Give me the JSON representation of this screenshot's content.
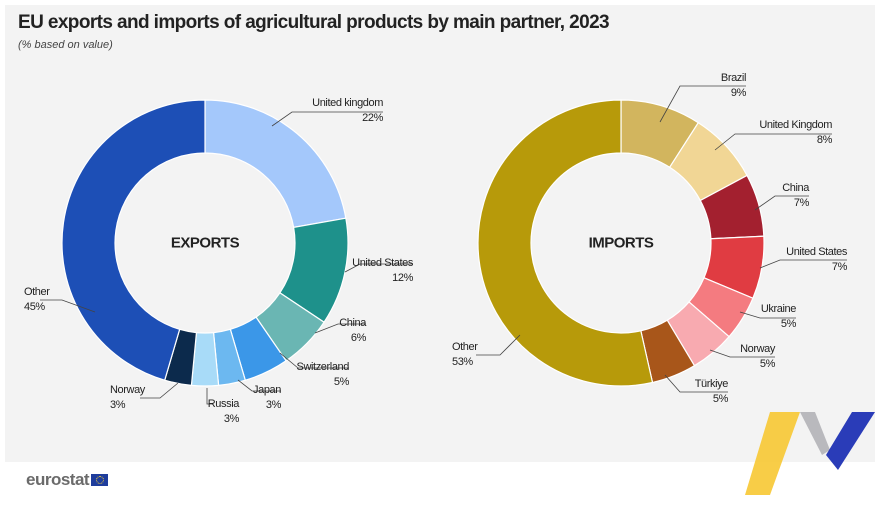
{
  "title": "EU exports and imports of agricultural products by main partner, 2023",
  "subtitle": "(% based on value)",
  "logo_text": "eurostat",
  "chart_data": [
    {
      "type": "pie",
      "variant": "donut",
      "center_label": "EXPORTS",
      "categories": [
        "United kingdom",
        "United States",
        "China",
        "Switzerland",
        "Japan",
        "Russia",
        "Norway",
        "Other"
      ],
      "values": [
        22,
        12,
        6,
        5,
        3,
        3,
        3,
        45
      ],
      "labels": [
        "22%",
        "12%",
        "6%",
        "5%",
        "3%",
        "3%",
        "3%",
        "45%"
      ],
      "colors": [
        "#a4c8fb",
        "#1e918b",
        "#6ab6b3",
        "#3b97e8",
        "#6cb8f0",
        "#a8dbf8",
        "#0c2a4c",
        "#1d4fb6"
      ]
    },
    {
      "type": "pie",
      "variant": "donut",
      "center_label": "IMPORTS",
      "categories": [
        "Brazil",
        "United Kingdom",
        "China",
        "United States",
        "Ukraine",
        "Norway",
        "Türkiye",
        "Other"
      ],
      "values": [
        9,
        8,
        7,
        7,
        5,
        5,
        5,
        53
      ],
      "labels": [
        "9%",
        "8%",
        "7%",
        "7%",
        "5%",
        "5%",
        "5%",
        "53%"
      ],
      "colors": [
        "#d2b55e",
        "#f1d695",
        "#a3202f",
        "#e03c42",
        "#f47b80",
        "#f8aab0",
        "#a8561a",
        "#b79a0a"
      ]
    }
  ]
}
